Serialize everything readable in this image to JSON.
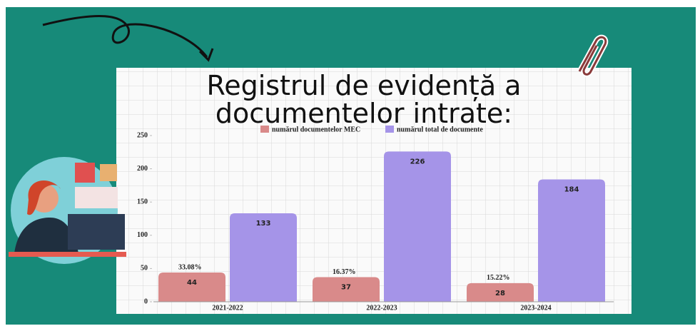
{
  "chart_data": {
    "type": "bar",
    "title_lines": [
      "Registrul de evidență a",
      "documentelor intrate:"
    ],
    "categories": [
      "2021-2022",
      "2022-2023",
      "2023-2024"
    ],
    "series": [
      {
        "name": "numărul documentelor MEC",
        "color": "#d98a8a",
        "values": [
          44,
          37,
          28
        ]
      },
      {
        "name": "numărul total de documente",
        "color": "#a594e8",
        "values": [
          133,
          226,
          184
        ]
      }
    ],
    "annotations": [
      "33.08%",
      "16.37%",
      "15.22%"
    ],
    "ylim": [
      0,
      250
    ],
    "yticks": [
      0,
      50,
      100,
      150,
      200,
      250
    ]
  }
}
